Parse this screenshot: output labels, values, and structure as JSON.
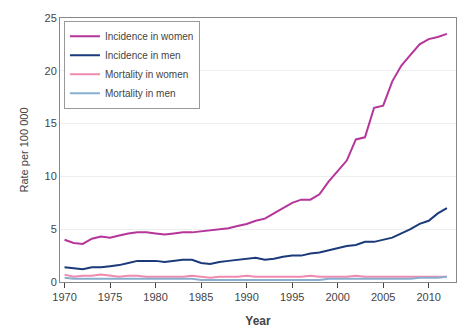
{
  "chart_data": {
    "type": "line",
    "x": [
      1970,
      1971,
      1972,
      1973,
      1974,
      1975,
      1976,
      1977,
      1978,
      1979,
      1980,
      1981,
      1982,
      1983,
      1984,
      1985,
      1986,
      1987,
      1988,
      1989,
      1990,
      1991,
      1992,
      1993,
      1994,
      1995,
      1996,
      1997,
      1998,
      1999,
      2000,
      2001,
      2002,
      2003,
      2004,
      2005,
      2006,
      2007,
      2008,
      2009,
      2010,
      2011,
      2012
    ],
    "series": [
      {
        "name": "Incidence in women",
        "color": "#b5359a",
        "values": [
          4.0,
          3.7,
          3.6,
          4.1,
          4.3,
          4.2,
          4.4,
          4.6,
          4.7,
          4.7,
          4.6,
          4.5,
          4.6,
          4.7,
          4.7,
          4.8,
          4.9,
          5.0,
          5.1,
          5.3,
          5.5,
          5.8,
          6.0,
          6.5,
          7.0,
          7.5,
          7.8,
          7.8,
          8.3,
          9.5,
          10.5,
          11.5,
          13.5,
          13.7,
          16.5,
          16.7,
          19.0,
          20.5,
          21.5,
          22.5,
          23.0,
          23.2,
          23.5
        ]
      },
      {
        "name": "Incidence in men",
        "color": "#1a3a7a",
        "values": [
          1.4,
          1.3,
          1.2,
          1.4,
          1.4,
          1.5,
          1.6,
          1.8,
          2.0,
          2.0,
          2.0,
          1.9,
          2.0,
          2.1,
          2.1,
          1.8,
          1.7,
          1.9,
          2.0,
          2.1,
          2.2,
          2.3,
          2.1,
          2.2,
          2.4,
          2.5,
          2.5,
          2.7,
          2.8,
          3.0,
          3.2,
          3.4,
          3.5,
          3.8,
          3.8,
          4.0,
          4.2,
          4.6,
          5.0,
          5.5,
          5.8,
          6.5,
          7.0
        ]
      },
      {
        "name": "Mortality in women",
        "color": "#f08ab0",
        "values": [
          0.7,
          0.5,
          0.6,
          0.6,
          0.7,
          0.6,
          0.5,
          0.6,
          0.6,
          0.5,
          0.5,
          0.5,
          0.5,
          0.5,
          0.6,
          0.5,
          0.4,
          0.5,
          0.5,
          0.5,
          0.6,
          0.5,
          0.5,
          0.5,
          0.5,
          0.5,
          0.5,
          0.6,
          0.5,
          0.5,
          0.5,
          0.5,
          0.6,
          0.5,
          0.5,
          0.5,
          0.5,
          0.5,
          0.5,
          0.5,
          0.5,
          0.5,
          0.5
        ]
      },
      {
        "name": "Mortality in men",
        "color": "#88afd0",
        "values": [
          0.4,
          0.3,
          0.3,
          0.3,
          0.3,
          0.3,
          0.3,
          0.3,
          0.3,
          0.3,
          0.3,
          0.3,
          0.3,
          0.3,
          0.3,
          0.2,
          0.2,
          0.2,
          0.2,
          0.2,
          0.2,
          0.2,
          0.2,
          0.2,
          0.2,
          0.2,
          0.2,
          0.2,
          0.2,
          0.3,
          0.3,
          0.3,
          0.3,
          0.3,
          0.3,
          0.3,
          0.3,
          0.3,
          0.3,
          0.4,
          0.4,
          0.4,
          0.5
        ]
      }
    ],
    "xlabel": "Year",
    "ylabel": "Rate per 100 000",
    "xlim": [
      1969.5,
      2013
    ],
    "xticks": [
      1970,
      1975,
      1980,
      1985,
      1990,
      1995,
      2000,
      2005,
      2010
    ],
    "ylim": [
      0,
      25
    ],
    "yticks": [
      0,
      5,
      10,
      15,
      20,
      25
    ],
    "grid": true,
    "legend": "upper left"
  }
}
